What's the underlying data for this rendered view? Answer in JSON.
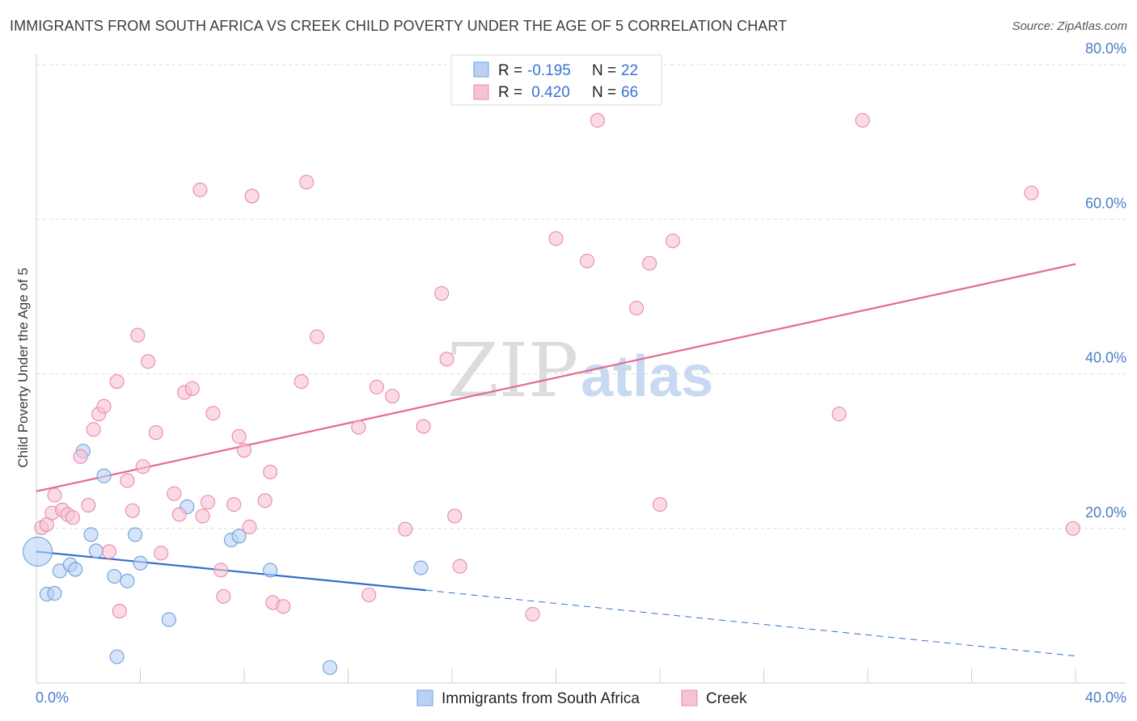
{
  "title": "IMMIGRANTS FROM SOUTH AFRICA VS CREEK CHILD POVERTY UNDER THE AGE OF 5 CORRELATION CHART",
  "source": "Source: ZipAtlas.com",
  "watermark": {
    "zip": "ZIP",
    "atlas": "atlas"
  },
  "colors": {
    "blue_fill": "#b9d2f3",
    "blue_stroke": "#6f9fdf",
    "blue_line": "#2f6fcf",
    "pink_fill": "#f7c3d3",
    "pink_stroke": "#e98aa8",
    "pink_line": "#e46a92",
    "tick_text": "#4a7cc9",
    "grid": "#dcdcdc"
  },
  "legend": {
    "rows": [
      {
        "r_label": "R =",
        "r_value": "-0.195",
        "n_label": "N =",
        "n_value": "22",
        "series": "blue"
      },
      {
        "r_label": "R =",
        "r_value": " 0.420",
        "n_label": "N =",
        "n_value": "66",
        "series": "pink"
      }
    ]
  },
  "chart_data": {
    "type": "scatter",
    "title": "IMMIGRANTS FROM SOUTH AFRICA VS CREEK CHILD POVERTY UNDER THE AGE OF 5 CORRELATION CHART",
    "xlabel": "",
    "ylabel": "Child Poverty Under the Age of 5",
    "xlim": [
      0,
      40
    ],
    "ylim": [
      0,
      80
    ],
    "x_ticks": [
      "0.0%",
      "40.0%"
    ],
    "y_ticks": [
      "20.0%",
      "40.0%",
      "60.0%",
      "80.0%"
    ],
    "y_tick_values": [
      20,
      40,
      60,
      80
    ],
    "grid": true,
    "legend_position": "top-center",
    "series": [
      {
        "name": "Immigrants from South Africa",
        "color": "blue",
        "r": -0.195,
        "n": 22,
        "trend": {
          "x0": 0,
          "y0": 17.0,
          "x1": 15,
          "y1": 12.0,
          "dash_to_x": 40,
          "dash_to_y": 3.5
        },
        "points": [
          [
            0.05,
            17.0,
            "large"
          ],
          [
            0.4,
            11.5
          ],
          [
            0.7,
            11.6
          ],
          [
            0.9,
            14.5
          ],
          [
            1.3,
            15.3
          ],
          [
            1.5,
            14.7
          ],
          [
            1.8,
            30.0
          ],
          [
            2.1,
            19.2
          ],
          [
            2.3,
            17.1
          ],
          [
            2.6,
            26.8
          ],
          [
            3.0,
            13.8
          ],
          [
            3.1,
            3.4
          ],
          [
            3.5,
            13.2
          ],
          [
            3.8,
            19.2
          ],
          [
            4.0,
            15.5
          ],
          [
            5.1,
            8.2
          ],
          [
            5.8,
            22.8
          ],
          [
            7.5,
            18.5
          ],
          [
            7.8,
            19.0
          ],
          [
            9.0,
            14.6
          ],
          [
            11.3,
            2.0
          ],
          [
            14.8,
            14.9
          ]
        ]
      },
      {
        "name": "Creek",
        "color": "pink",
        "r": 0.42,
        "n": 66,
        "trend": {
          "x0": 0,
          "y0": 24.8,
          "x1": 40,
          "y1": 54.2
        },
        "points": [
          [
            0.2,
            20.1
          ],
          [
            0.4,
            20.5
          ],
          [
            0.6,
            22.0
          ],
          [
            0.7,
            24.3
          ],
          [
            1.0,
            22.4
          ],
          [
            1.2,
            21.8
          ],
          [
            1.4,
            21.4
          ],
          [
            1.7,
            29.3
          ],
          [
            2.0,
            23.0
          ],
          [
            2.2,
            32.8
          ],
          [
            2.4,
            34.8
          ],
          [
            2.6,
            35.8
          ],
          [
            2.8,
            17.0
          ],
          [
            3.1,
            39.0
          ],
          [
            3.2,
            9.3
          ],
          [
            3.5,
            26.2
          ],
          [
            3.7,
            22.3
          ],
          [
            3.9,
            45.0
          ],
          [
            4.1,
            28.0
          ],
          [
            4.3,
            41.6
          ],
          [
            4.6,
            32.4
          ],
          [
            4.8,
            16.8
          ],
          [
            5.3,
            24.5
          ],
          [
            5.5,
            21.8
          ],
          [
            5.7,
            37.6
          ],
          [
            6.0,
            38.1
          ],
          [
            6.3,
            63.8
          ],
          [
            6.4,
            21.6
          ],
          [
            6.6,
            23.4
          ],
          [
            6.8,
            34.9
          ],
          [
            7.1,
            14.6
          ],
          [
            7.2,
            11.2
          ],
          [
            7.6,
            23.1
          ],
          [
            7.8,
            31.9
          ],
          [
            8.0,
            30.1
          ],
          [
            8.2,
            20.2
          ],
          [
            8.3,
            63.0
          ],
          [
            8.8,
            23.6
          ],
          [
            9.0,
            27.3
          ],
          [
            9.1,
            10.4
          ],
          [
            9.5,
            9.9
          ],
          [
            10.2,
            39.0
          ],
          [
            10.4,
            64.8
          ],
          [
            10.8,
            44.8
          ],
          [
            12.4,
            33.1
          ],
          [
            12.8,
            11.4
          ],
          [
            13.1,
            38.3
          ],
          [
            13.7,
            37.1
          ],
          [
            14.2,
            19.9
          ],
          [
            14.9,
            33.2
          ],
          [
            15.6,
            50.4
          ],
          [
            15.8,
            41.9
          ],
          [
            16.1,
            21.6
          ],
          [
            16.3,
            15.1
          ],
          [
            19.1,
            8.9
          ],
          [
            20.0,
            57.5
          ],
          [
            21.2,
            54.6
          ],
          [
            21.6,
            72.8
          ],
          [
            23.1,
            48.5
          ],
          [
            23.6,
            54.3
          ],
          [
            24.0,
            23.1
          ],
          [
            24.5,
            57.2
          ],
          [
            30.9,
            34.8
          ],
          [
            31.8,
            72.8
          ],
          [
            38.3,
            63.4
          ],
          [
            39.9,
            20.0
          ]
        ]
      }
    ]
  },
  "bottom_legend": [
    {
      "label": "Immigrants from South Africa",
      "series": "blue"
    },
    {
      "label": "Creek",
      "series": "pink"
    }
  ]
}
